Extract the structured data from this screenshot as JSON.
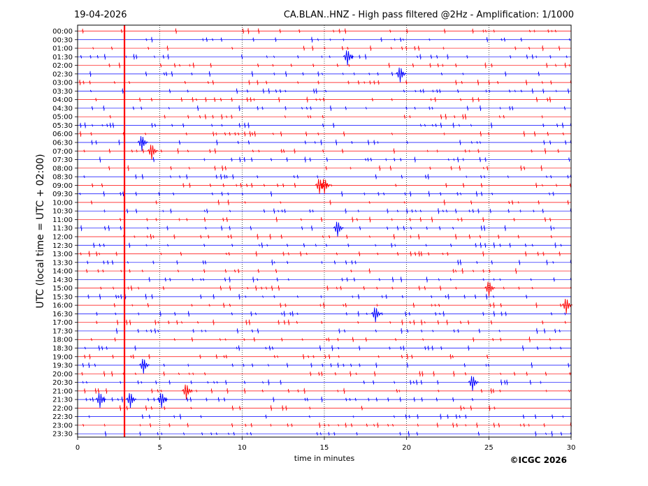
{
  "header": {
    "date": "19-04-2026",
    "title": "CA.BLAN..HNZ - High pass filtered @2Hz - Amplification: 1/1000"
  },
  "footer": {
    "copyright": "©ICGC 2026"
  },
  "chart_data": {
    "type": "line",
    "title": "CA.BLAN..HNZ - High pass filtered @2Hz - Amplification: 1/1000",
    "xlabel": "time in minutes",
    "ylabel": "UTC (local time = UTC + 02:00)",
    "xlim": [
      0,
      30
    ],
    "x_ticks": [
      0,
      5,
      10,
      15,
      20,
      25,
      30
    ],
    "grid": "vertical dotted at 5, 10, 15, 20, 25",
    "row_labels": [
      "00:00",
      "00:30",
      "01:00",
      "01:30",
      "02:00",
      "02:30",
      "03:00",
      "03:30",
      "04:00",
      "04:30",
      "05:00",
      "05:30",
      "06:00",
      "06:30",
      "07:00",
      "07:30",
      "08:00",
      "08:30",
      "09:00",
      "09:30",
      "10:00",
      "10:30",
      "11:00",
      "11:30",
      "12:00",
      "12:30",
      "13:00",
      "13:30",
      "14:00",
      "14:30",
      "15:00",
      "15:30",
      "16:00",
      "16:30",
      "17:00",
      "17:30",
      "18:00",
      "18:30",
      "19:00",
      "19:30",
      "20:00",
      "20:30",
      "21:00",
      "21:30",
      "22:00",
      "22:30",
      "23:00",
      "23:30"
    ],
    "colors": {
      "even_rows": "#ff0000",
      "odd_rows": "#0000ff",
      "marker": "#ff0000"
    },
    "marker_line_x": 2.85,
    "events": [
      {
        "row": "06:30",
        "x": 3.9
      },
      {
        "row": "07:00",
        "x": 4.5
      },
      {
        "row": "09:00",
        "x": 15.0
      },
      {
        "row": "09:00",
        "x": 14.7
      },
      {
        "row": "16:00",
        "x": 29.7
      },
      {
        "row": "16:30",
        "x": 18.1
      },
      {
        "row": "11:30",
        "x": 15.8
      },
      {
        "row": "21:30",
        "x": 1.35
      },
      {
        "row": "21:30",
        "x": 5.1
      },
      {
        "row": "21:30",
        "x": 3.2
      },
      {
        "row": "20:30",
        "x": 24.0
      },
      {
        "row": "19:30",
        "x": 4.0
      },
      {
        "row": "02:30",
        "x": 19.6
      },
      {
        "row": "01:30",
        "x": 16.4
      },
      {
        "row": "15:00",
        "x": 25.0
      },
      {
        "row": "21:00",
        "x": 6.6
      }
    ]
  }
}
